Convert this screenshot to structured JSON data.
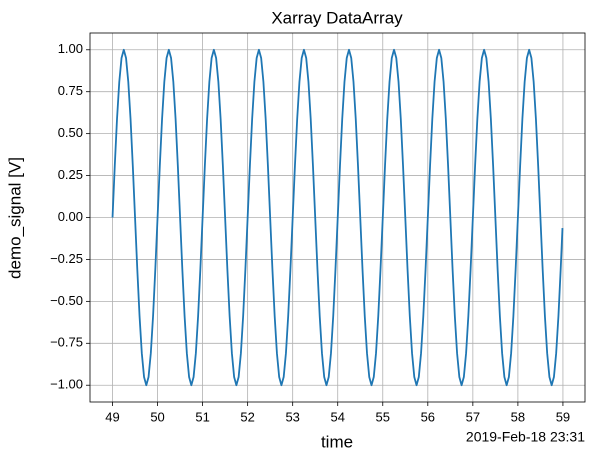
{
  "chart_data": {
    "type": "line",
    "title": "Xarray DataArray",
    "xlabel": "time",
    "ylabel": "demo_signal [V]",
    "x_offset_label": "2019-Feb-18 23:31",
    "x": [
      49,
      49.05,
      49.1,
      49.15,
      49.2,
      49.25,
      49.3,
      49.35,
      49.4,
      49.45,
      49.5,
      49.55,
      49.6,
      49.65,
      49.7,
      49.75,
      49.8,
      49.85,
      49.9,
      49.95,
      50,
      50.05,
      50.1,
      50.15,
      50.2,
      50.25,
      50.3,
      50.35,
      50.4,
      50.45,
      50.5,
      50.55,
      50.6,
      50.65,
      50.7,
      50.75,
      50.8,
      50.85,
      50.9,
      50.95,
      51,
      51.05,
      51.1,
      51.15,
      51.2,
      51.25,
      51.3,
      51.35,
      51.4,
      51.45,
      51.5,
      51.55,
      51.6,
      51.65,
      51.7,
      51.75,
      51.8,
      51.85,
      51.9,
      51.95,
      52,
      52.05,
      52.1,
      52.15,
      52.2,
      52.25,
      52.3,
      52.35,
      52.4,
      52.45,
      52.5,
      52.55,
      52.6,
      52.65,
      52.7,
      52.75,
      52.8,
      52.85,
      52.9,
      52.95,
      53,
      53.05,
      53.1,
      53.15,
      53.2,
      53.25,
      53.3,
      53.35,
      53.4,
      53.45,
      53.5,
      53.55,
      53.6,
      53.65,
      53.7,
      53.75,
      53.8,
      53.85,
      53.9,
      53.95,
      54,
      54.05,
      54.1,
      54.15,
      54.2,
      54.25,
      54.3,
      54.35,
      54.4,
      54.45,
      54.5,
      54.55,
      54.6,
      54.65,
      54.7,
      54.75,
      54.8,
      54.85,
      54.9,
      54.95,
      55,
      55.05,
      55.1,
      55.15,
      55.2,
      55.25,
      55.3,
      55.35,
      55.4,
      55.45,
      55.5,
      55.55,
      55.6,
      55.65,
      55.7,
      55.75,
      55.8,
      55.85,
      55.9,
      55.95,
      56,
      56.05,
      56.1,
      56.15,
      56.2,
      56.25,
      56.3,
      56.35,
      56.4,
      56.45,
      56.5,
      56.55,
      56.6,
      56.65,
      56.7,
      56.75,
      56.8,
      56.85,
      56.9,
      56.95,
      57,
      57.05,
      57.1,
      57.15,
      57.2,
      57.25,
      57.3,
      57.35,
      57.4,
      57.45,
      57.5,
      57.55,
      57.6,
      57.65,
      57.7,
      57.75,
      57.8,
      57.85,
      57.9,
      57.95,
      58,
      58.05,
      58.1,
      58.15,
      58.2,
      58.25,
      58.3,
      58.35,
      58.4,
      58.45,
      58.5,
      58.55,
      58.6,
      58.65,
      58.7,
      58.75,
      58.8,
      58.85,
      58.9,
      58.95,
      58.99
    ],
    "values": [
      0,
      0.309,
      0.588,
      0.809,
      0.951,
      1,
      0.951,
      0.809,
      0.588,
      0.309,
      0,
      -0.309,
      -0.588,
      -0.809,
      -0.951,
      -1,
      -0.951,
      -0.809,
      -0.588,
      -0.309,
      0,
      0.309,
      0.588,
      0.809,
      0.951,
      1,
      0.951,
      0.809,
      0.588,
      0.309,
      0,
      -0.309,
      -0.588,
      -0.809,
      -0.951,
      -1,
      -0.951,
      -0.809,
      -0.588,
      -0.309,
      0,
      0.309,
      0.588,
      0.809,
      0.951,
      1,
      0.951,
      0.809,
      0.588,
      0.309,
      0,
      -0.309,
      -0.588,
      -0.809,
      -0.951,
      -1,
      -0.951,
      -0.809,
      -0.588,
      -0.309,
      0,
      0.309,
      0.588,
      0.809,
      0.951,
      1,
      0.951,
      0.809,
      0.588,
      0.309,
      0,
      -0.309,
      -0.588,
      -0.809,
      -0.951,
      -1,
      -0.951,
      -0.809,
      -0.588,
      -0.309,
      0,
      0.309,
      0.588,
      0.809,
      0.951,
      1,
      0.951,
      0.809,
      0.588,
      0.309,
      0,
      -0.309,
      -0.588,
      -0.809,
      -0.951,
      -1,
      -0.951,
      -0.809,
      -0.588,
      -0.309,
      0,
      0.309,
      0.588,
      0.809,
      0.951,
      1,
      0.951,
      0.809,
      0.588,
      0.309,
      0,
      -0.309,
      -0.588,
      -0.809,
      -0.951,
      -1,
      -0.951,
      -0.809,
      -0.588,
      -0.309,
      0,
      0.309,
      0.588,
      0.809,
      0.951,
      1,
      0.951,
      0.809,
      0.588,
      0.309,
      0,
      -0.309,
      -0.588,
      -0.809,
      -0.951,
      -1,
      -0.951,
      -0.809,
      -0.588,
      -0.309,
      0,
      0.309,
      0.588,
      0.809,
      0.951,
      1,
      0.951,
      0.809,
      0.588,
      0.309,
      0,
      -0.309,
      -0.588,
      -0.809,
      -0.951,
      -1,
      -0.951,
      -0.809,
      -0.588,
      -0.309,
      0,
      0.309,
      0.588,
      0.809,
      0.951,
      1,
      0.951,
      0.809,
      0.588,
      0.309,
      0,
      -0.309,
      -0.588,
      -0.809,
      -0.951,
      -1,
      -0.951,
      -0.809,
      -0.588,
      -0.309,
      0,
      0.309,
      0.588,
      0.809,
      0.951,
      1,
      0.951,
      0.809,
      0.588,
      0.309,
      0,
      -0.309,
      -0.588,
      -0.809,
      -0.951,
      -1,
      -0.951,
      -0.809,
      -0.588,
      -0.309,
      -0.063
    ],
    "color": "#1f77b4",
    "xlim": [
      48.5,
      59.49
    ],
    "xticks": [
      49,
      50,
      51,
      52,
      53,
      54,
      55,
      56,
      57,
      58,
      59
    ],
    "ylim": [
      -1.1,
      1.1
    ],
    "yticks": [
      {
        "value": -1,
        "label": "−1.00"
      },
      {
        "value": -0.75,
        "label": "−0.75"
      },
      {
        "value": -0.5,
        "label": "−0.50"
      },
      {
        "value": -0.25,
        "label": "−0.25"
      },
      {
        "value": 0,
        "label": "0.00"
      },
      {
        "value": 0.25,
        "label": "0.25"
      },
      {
        "value": 0.5,
        "label": "0.50"
      },
      {
        "value": 0.75,
        "label": "0.75"
      },
      {
        "value": 1,
        "label": "1.00"
      }
    ],
    "grid": true
  }
}
